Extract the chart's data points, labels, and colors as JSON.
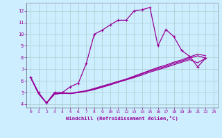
{
  "xlabel": "Windchill (Refroidissement éolien,°C)",
  "background_color": "#cceeff",
  "grid_color": "#aacccc",
  "line_color": "#990099",
  "xlim": [
    -0.5,
    23.5
  ],
  "ylim": [
    3.7,
    12.7
  ],
  "xticks": [
    0,
    1,
    2,
    3,
    4,
    5,
    6,
    7,
    8,
    9,
    10,
    11,
    12,
    13,
    14,
    15,
    16,
    17,
    18,
    19,
    20,
    21,
    22,
    23
  ],
  "yticks": [
    4,
    5,
    6,
    7,
    8,
    9,
    10,
    11,
    12
  ],
  "series": [
    [
      6.3,
      5.0,
      4.1,
      5.0,
      5.0,
      5.5,
      5.8,
      7.5,
      10.0,
      10.35,
      10.8,
      11.2,
      11.2,
      12.0,
      12.1,
      12.3,
      9.0,
      10.4,
      9.8,
      8.6,
      8.1,
      7.2,
      7.95
    ],
    [
      6.3,
      4.9,
      4.1,
      4.85,
      4.95,
      4.9,
      5.0,
      5.15,
      5.35,
      5.55,
      5.75,
      5.95,
      6.15,
      6.4,
      6.65,
      6.9,
      7.15,
      7.35,
      7.6,
      7.8,
      8.05,
      8.3,
      8.15
    ],
    [
      6.3,
      4.9,
      4.1,
      4.85,
      4.95,
      4.92,
      5.0,
      5.1,
      5.25,
      5.45,
      5.65,
      5.88,
      6.1,
      6.35,
      6.6,
      6.85,
      7.05,
      7.25,
      7.5,
      7.7,
      7.95,
      8.15,
      7.95
    ],
    [
      6.3,
      4.9,
      4.1,
      4.9,
      4.95,
      4.93,
      5.05,
      5.15,
      5.3,
      5.5,
      5.68,
      5.88,
      6.08,
      6.28,
      6.5,
      6.75,
      6.95,
      7.15,
      7.38,
      7.6,
      7.82,
      7.55,
      7.95
    ]
  ]
}
